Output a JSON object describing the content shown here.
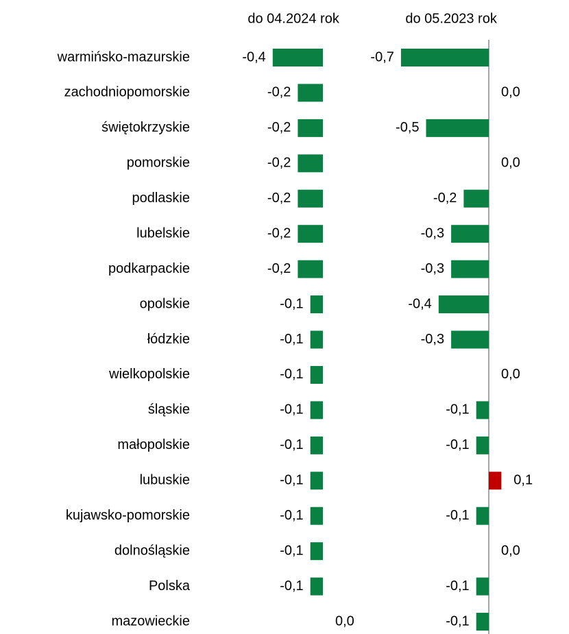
{
  "chart_data": {
    "type": "bar",
    "orientation": "horizontal",
    "categories": [
      "warmińsko-mazurskie",
      "zachodniopomorskie",
      "świętokrzyskie",
      "pomorskie",
      "podlaskie",
      "lubelskie",
      "podkarpackie",
      "opolskie",
      "łódzkie",
      "wielkopolskie",
      "śląskie",
      "małopolskie",
      "lubuskie",
      "kujawsko-pomorskie",
      "dolnośląskie",
      "Polska",
      "mazowieckie"
    ],
    "series": [
      {
        "name": "do 04.2024 rok",
        "zero_line": false,
        "values": [
          -0.4,
          -0.2,
          -0.2,
          -0.2,
          -0.2,
          -0.2,
          -0.2,
          -0.1,
          -0.1,
          -0.1,
          -0.1,
          -0.1,
          -0.1,
          -0.1,
          -0.1,
          -0.1,
          0.0
        ],
        "value_labels": [
          "-0,4",
          "-0,2",
          "-0,2",
          "-0,2",
          "-0,2",
          "-0,2",
          "-0,2",
          "-0,1",
          "-0,1",
          "-0,1",
          "-0,1",
          "-0,1",
          "-0,1",
          "-0,1",
          "-0,1",
          "-0,1",
          "0,0"
        ]
      },
      {
        "name": "do 05.2023 rok",
        "zero_line": true,
        "values": [
          -0.7,
          0.0,
          -0.5,
          0.0,
          -0.2,
          -0.3,
          -0.3,
          -0.4,
          -0.3,
          0.0,
          -0.1,
          -0.1,
          0.1,
          -0.1,
          0.0,
          -0.1,
          -0.1
        ],
        "value_labels": [
          "-0,7",
          "0,0",
          "-0,5",
          "0,0",
          "-0,2",
          "-0,3",
          "-0,3",
          "-0,4",
          "-0,3",
          "0,0",
          "-0,1",
          "-0,1",
          "0,1",
          "-0,1",
          "0,0",
          "-0,1",
          "-0,1"
        ]
      }
    ],
    "color": "#0b8043",
    "positive_color": "#c00000",
    "xlim": [
      -0.7,
      0.1
    ]
  }
}
